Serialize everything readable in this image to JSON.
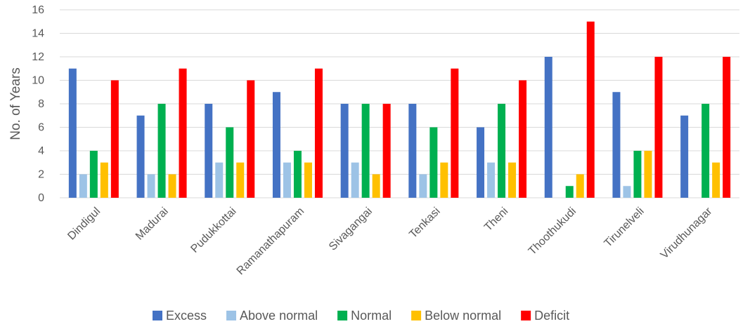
{
  "chart_data": {
    "type": "bar",
    "title": "",
    "xlabel": "",
    "ylabel": "No. of Years",
    "ylim": [
      0,
      16
    ],
    "yticks": [
      0,
      2,
      4,
      6,
      8,
      10,
      12,
      14,
      16
    ],
    "grid": true,
    "legend_position": "bottom",
    "categories": [
      "Dindigul",
      "Madurai",
      "Pudukkottai",
      "Ramanathapuram",
      "Sivagangai",
      "Tenkasi",
      "Theni",
      "Thoothukudi",
      "Tirunelveli",
      "Virudhunagar"
    ],
    "series": [
      {
        "name": "Excess",
        "color": "#4472C4",
        "values": [
          11,
          7,
          8,
          9,
          8,
          8,
          6,
          12,
          9,
          7
        ]
      },
      {
        "name": "Above normal",
        "color": "#9DC3E6",
        "values": [
          2,
          2,
          3,
          3,
          3,
          2,
          3,
          0,
          1,
          0
        ]
      },
      {
        "name": "Normal",
        "color": "#00B050",
        "values": [
          4,
          8,
          6,
          4,
          8,
          6,
          8,
          1,
          4,
          8
        ]
      },
      {
        "name": "Below normal",
        "color": "#FFC000",
        "values": [
          3,
          2,
          3,
          3,
          2,
          3,
          3,
          2,
          4,
          3
        ]
      },
      {
        "name": "Deficit",
        "color": "#FF0000",
        "values": [
          10,
          11,
          10,
          11,
          8,
          11,
          10,
          15,
          12,
          12
        ]
      }
    ]
  }
}
